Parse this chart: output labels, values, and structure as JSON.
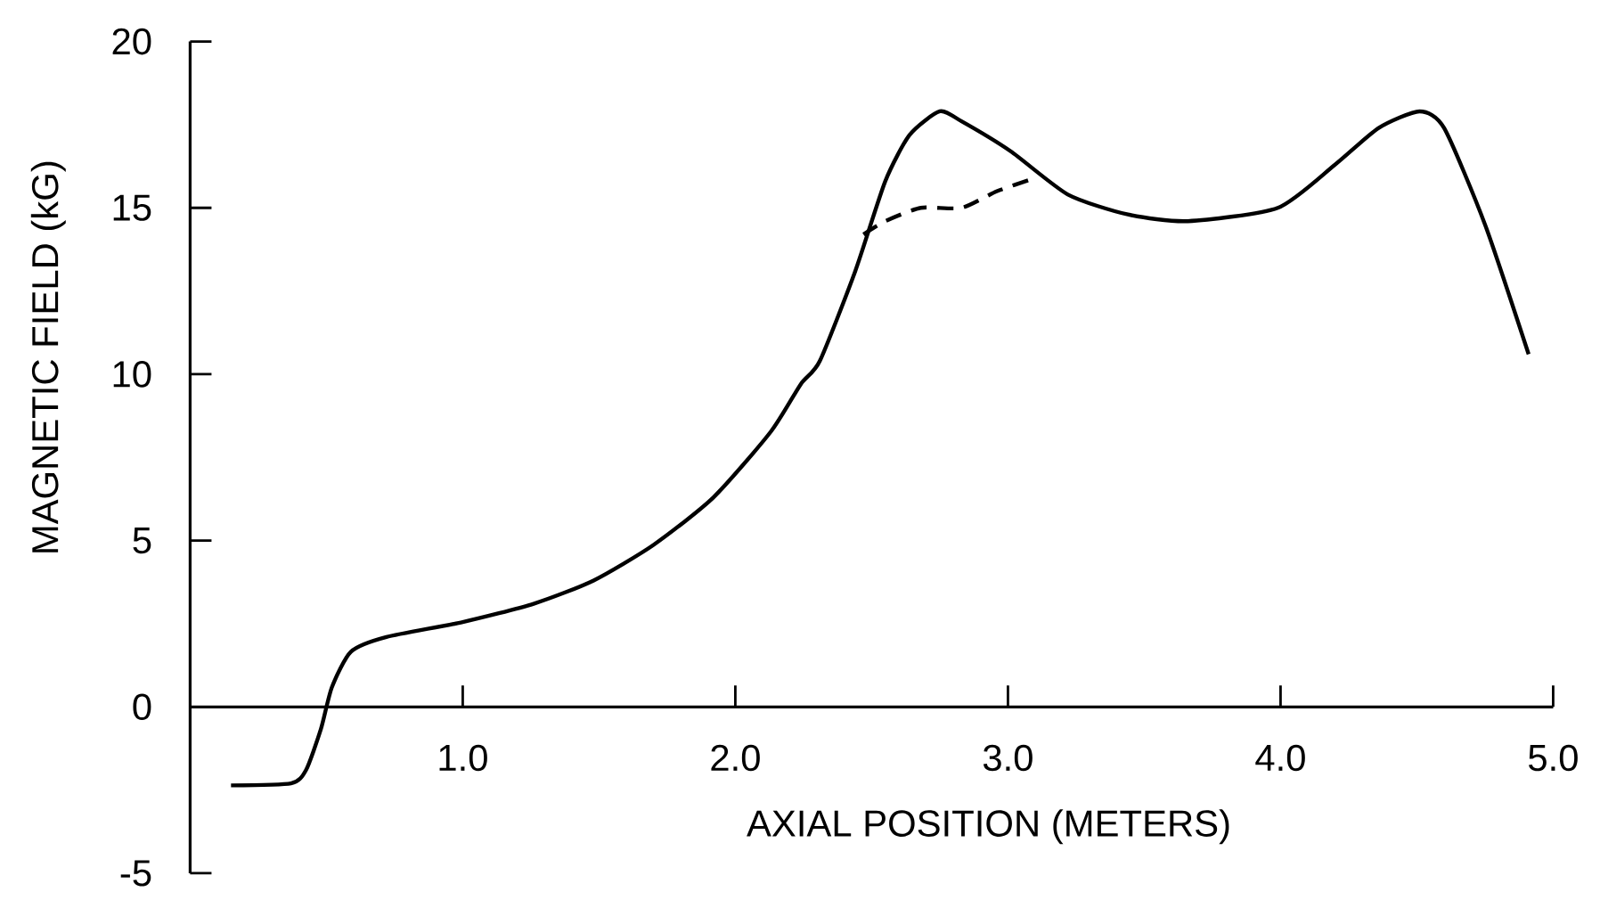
{
  "chart_data": {
    "type": "line",
    "xlabel": "AXIAL POSITION (METERS)",
    "ylabel": "MAGNETIC FIELD (kG)",
    "xlim": [
      0,
      5
    ],
    "ylim": [
      -5,
      20
    ],
    "xticks": [
      {
        "value": 1,
        "label": "1.0"
      },
      {
        "value": 2,
        "label": "2.0"
      },
      {
        "value": 3,
        "label": "3.0"
      },
      {
        "value": 4,
        "label": "4.0"
      },
      {
        "value": 5,
        "label": "5.0"
      }
    ],
    "yticks": [
      -5,
      0,
      5,
      10,
      15,
      20
    ],
    "series": [
      {
        "color": "#000000",
        "line_style": "solid",
        "x": [
          0.15,
          0.37,
          0.425,
          0.48,
          0.52,
          0.59,
          0.72,
          1.0,
          1.26,
          1.48,
          1.7,
          1.92,
          2.13,
          2.24,
          2.31,
          2.44,
          2.55,
          2.64,
          2.75,
          2.83,
          3.01,
          3.22,
          3.44,
          3.66,
          3.99,
          4.2,
          4.36,
          4.51,
          4.6,
          4.75,
          4.91
        ],
        "values": [
          -2.36,
          -2.3,
          -1.9,
          -0.66,
          0.59,
          1.66,
          2.1,
          2.55,
          3.1,
          3.8,
          4.87,
          6.3,
          8.27,
          9.7,
          10.4,
          13.1,
          15.8,
          17.2,
          17.9,
          17.6,
          16.7,
          15.4,
          14.8,
          14.6,
          15.0,
          16.3,
          17.4,
          17.9,
          17.4,
          14.5,
          10.6
        ]
      },
      {
        "color": "#000000",
        "line_style": "dashed",
        "x": [
          2.47,
          2.55,
          2.68,
          2.83,
          2.96,
          3.1
        ],
        "values": [
          14.2,
          14.6,
          15.0,
          15.0,
          15.5,
          15.9
        ]
      }
    ]
  }
}
